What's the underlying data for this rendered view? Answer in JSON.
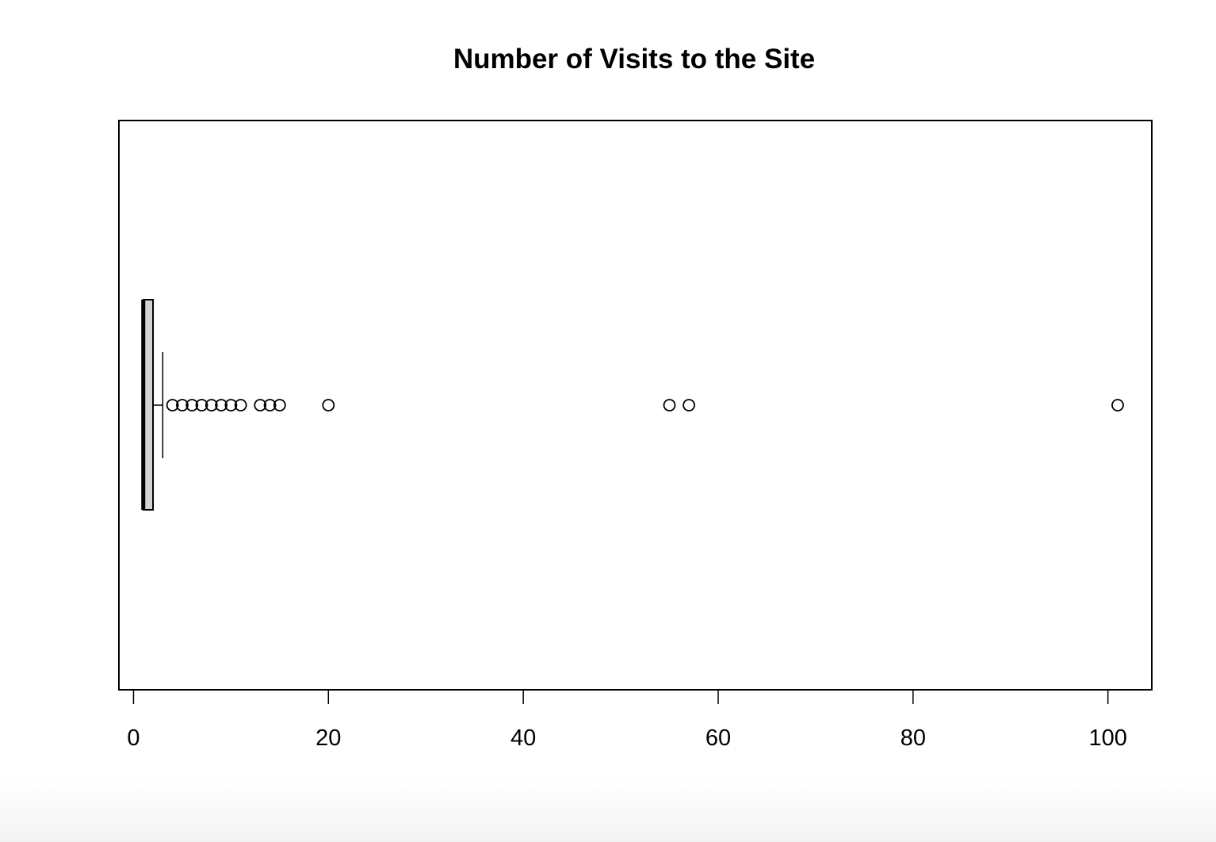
{
  "chart_data": {
    "type": "boxplot",
    "orientation": "horizontal",
    "title": "Number of Visits to the Site",
    "xlabel": "",
    "ylabel": "",
    "xlim": [
      -1.5,
      104.5
    ],
    "x_ticks": [
      0,
      20,
      40,
      60,
      80,
      100
    ],
    "x_tick_labels": [
      "0",
      "20",
      "40",
      "60",
      "80",
      "100"
    ],
    "grid": false,
    "box": {
      "whisker_low": 1,
      "q1": 1,
      "median": 1,
      "q3": 2,
      "whisker_high": 3,
      "fill": "#d3d3d3"
    },
    "outliers": [
      4,
      5,
      6,
      7,
      8,
      9,
      10,
      11,
      13,
      14,
      15,
      20,
      55,
      57,
      101
    ]
  }
}
